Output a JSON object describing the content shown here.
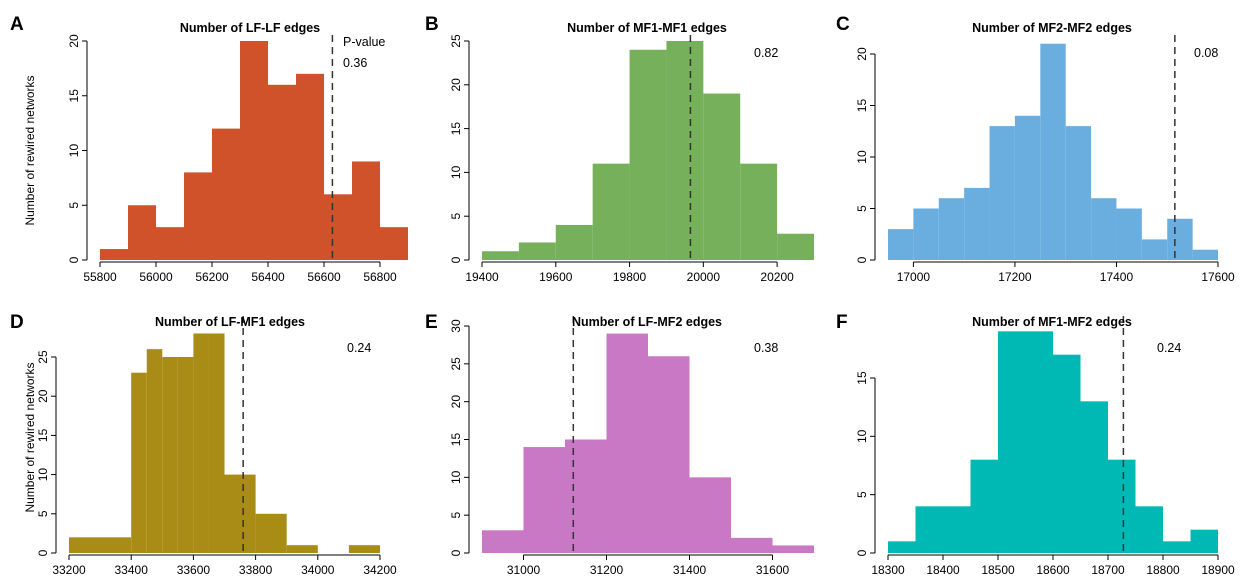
{
  "figure": {
    "ylabel": "Number of rewired networks"
  },
  "chart_data": [
    {
      "panel": "A",
      "type": "bar",
      "title": "Number of LF-LF edges",
      "color": "#d0522a",
      "bin_edges": [
        55800,
        55900,
        56000,
        56100,
        56200,
        56300,
        56400,
        56500,
        56600,
        56700,
        56800,
        56900
      ],
      "values": [
        1,
        5,
        3,
        8,
        12,
        20,
        16,
        17,
        6,
        9,
        3
      ],
      "xlim": [
        55800,
        56900
      ],
      "xticks": [
        55800,
        56000,
        56200,
        56400,
        56600,
        56800
      ],
      "ylim": [
        0,
        20
      ],
      "yticks": [
        0,
        5,
        10,
        15,
        20
      ],
      "observed": 56630,
      "pvalue_label": "P-value",
      "pvalue": "0.36",
      "ylabel": "Number of rewired networks"
    },
    {
      "panel": "B",
      "type": "bar",
      "title": "Number of MF1-MF1 edges",
      "color": "#77b05a",
      "bin_edges": [
        19400,
        19500,
        19600,
        19700,
        19800,
        19900,
        20000,
        20100,
        20200,
        20300
      ],
      "values": [
        1,
        2,
        4,
        11,
        24,
        25,
        19,
        11,
        3
      ],
      "xlim": [
        19400,
        20300
      ],
      "xticks": [
        19400,
        19600,
        19800,
        20000,
        20200
      ],
      "ylim": [
        0,
        25
      ],
      "yticks": [
        0,
        5,
        10,
        15,
        20,
        25
      ],
      "observed": 19965,
      "pvalue": "0.82"
    },
    {
      "panel": "C",
      "type": "bar",
      "title": "Number of MF2-MF2 edges",
      "color": "#6aaee0",
      "bin_edges": [
        16950,
        17000,
        17050,
        17100,
        17150,
        17200,
        17250,
        17300,
        17350,
        17400,
        17450,
        17500,
        17550,
        17600
      ],
      "values": [
        3,
        5,
        6,
        7,
        13,
        14,
        21,
        13,
        6,
        5,
        2,
        4,
        1
      ],
      "xlim": [
        16950,
        17600
      ],
      "xticks": [
        17000,
        17200,
        17400,
        17600
      ],
      "ylim": [
        0,
        20
      ],
      "yticks": [
        0,
        5,
        10,
        15,
        20
      ],
      "observed": 17515,
      "pvalue": "0.08"
    },
    {
      "panel": "D",
      "type": "bar",
      "title": "Number of LF-MF1 edges",
      "color": "#a98c15",
      "bin_edges": [
        33200,
        33400,
        33450,
        33500,
        33550,
        33600,
        33650,
        33700,
        33800,
        33900,
        34000,
        34100,
        34200
      ],
      "values": [
        2,
        23,
        26,
        25,
        25,
        28,
        28,
        10,
        5,
        1,
        0,
        1
      ],
      "xlim": [
        33200,
        34200
      ],
      "xticks": [
        33200,
        33400,
        33600,
        33800,
        34000,
        34200
      ],
      "ylim": [
        0,
        25
      ],
      "yticks": [
        0,
        5,
        10,
        15,
        20,
        25
      ],
      "observed": 33760,
      "pvalue": "0.24",
      "ylabel": "Number of rewired networks"
    },
    {
      "panel": "E",
      "type": "bar",
      "title": "Number of LF-MF2 edges",
      "color": "#c878c4",
      "bin_edges": [
        30900,
        31000,
        31100,
        31200,
        31300,
        31400,
        31500,
        31600,
        31700
      ],
      "values": [
        3,
        14,
        15,
        29,
        26,
        10,
        2,
        1
      ],
      "xlim": [
        30900,
        31700
      ],
      "xticks": [
        31000,
        31200,
        31400,
        31600
      ],
      "ylim": [
        0,
        30
      ],
      "yticks": [
        0,
        5,
        10,
        15,
        20,
        25,
        30
      ],
      "observed": 31120,
      "pvalue": "0.38"
    },
    {
      "panel": "F",
      "type": "bar",
      "title": "Number of MF1-MF2 edges",
      "color": "#00b9b5",
      "bin_edges": [
        18300,
        18350,
        18400,
        18450,
        18500,
        18550,
        18600,
        18650,
        18700,
        18750,
        18800,
        18850,
        18900
      ],
      "values": [
        1,
        4,
        4,
        8,
        19,
        19,
        17,
        13,
        8,
        4,
        1,
        2
      ],
      "xlim": [
        18300,
        18900
      ],
      "xticks": [
        18300,
        18400,
        18500,
        18600,
        18700,
        18800,
        18900
      ],
      "ylim": [
        0,
        15
      ],
      "yticks": [
        0,
        5,
        10,
        15
      ],
      "observed": 18728,
      "pvalue": "0.24"
    }
  ]
}
